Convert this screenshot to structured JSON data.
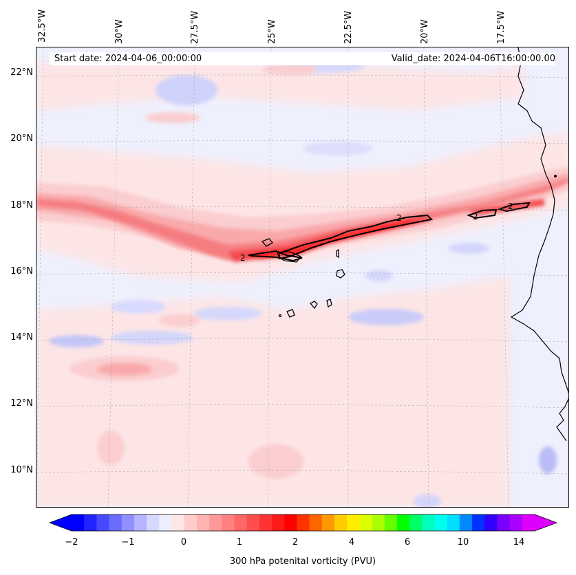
{
  "map": {
    "start_date": "Start date: 2024-04-06_00:00:00",
    "valid_date": "Valid_date: 2024-04-06T16:00:00.00",
    "longitude_labels": [
      "32.5°W",
      "30°W",
      "27.5°W",
      "25°W",
      "22.5°W",
      "20°W",
      "17.5°W"
    ],
    "latitude_labels": [
      "22°N",
      "20°N",
      "18°N",
      "16°N",
      "14°N",
      "12°N",
      "10°N"
    ],
    "contour_label": "2",
    "colors": {
      "background": "#eef0fd",
      "light_pink": "#fde5e6",
      "pink": "#fbcdcf",
      "salmon": "#f9a9ab",
      "red_mid": "#f57d80",
      "red_strong": "#f44b4f",
      "red_core": "#ff0000",
      "orange_core": "#ff3b1a",
      "light_blue": "#d3d5fb",
      "blue": "#b6b9f7",
      "coastline": "#000000"
    }
  },
  "colorbar": {
    "label": "300 hPa potenital vorticity (PVU)",
    "tick_labels": [
      "−2",
      "−1",
      "0",
      "1",
      "2",
      "4",
      "6",
      "10",
      "14"
    ],
    "colors": [
      "#0000ff",
      "#2323ff",
      "#4848ff",
      "#6c6cff",
      "#9090ff",
      "#b4b4ff",
      "#d8d8ff",
      "#eeeeff",
      "#ffe6e6",
      "#ffcccc",
      "#ffb3b3",
      "#ff9999",
      "#ff8080",
      "#ff6666",
      "#ff4d4d",
      "#ff3333",
      "#ff1a1a",
      "#ff0000",
      "#ff3300",
      "#ff6600",
      "#ff9900",
      "#ffcc00",
      "#ffee00",
      "#ddff00",
      "#aaff00",
      "#66ff00",
      "#00ff00",
      "#00ff66",
      "#00ffbb",
      "#00ffee",
      "#00ddff",
      "#0088ff",
      "#0033ff",
      "#3300ff",
      "#7700ff",
      "#aa00ff",
      "#dd00ff"
    ]
  }
}
